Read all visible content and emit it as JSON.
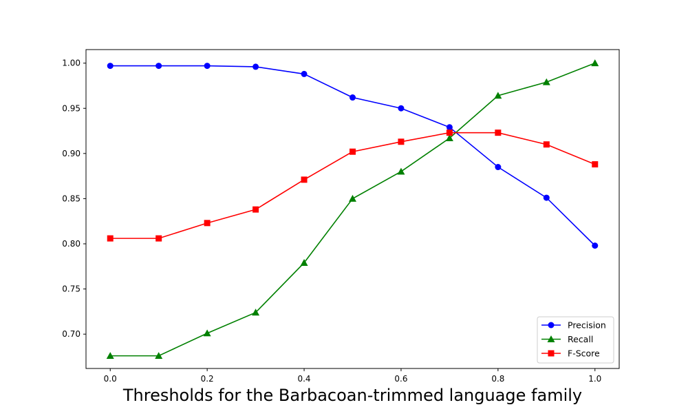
{
  "chart_data": {
    "type": "line",
    "title": "",
    "xlabel": "Thresholds for the Barbacoan-trimmed language family",
    "ylabel": "",
    "xlim": [
      -0.05,
      1.05
    ],
    "ylim": [
      0.662,
      1.015
    ],
    "x": [
      0.0,
      0.1,
      0.2,
      0.3,
      0.4,
      0.5,
      0.6,
      0.7,
      0.8,
      0.9,
      1.0
    ],
    "xticks": [
      0.0,
      0.2,
      0.4,
      0.6,
      0.8,
      1.0
    ],
    "xtick_labels": [
      "0.0",
      "0.2",
      "0.4",
      "0.6",
      "0.8",
      "1.0"
    ],
    "yticks": [
      0.7,
      0.75,
      0.8,
      0.85,
      0.9,
      0.95,
      1.0
    ],
    "ytick_labels": [
      "0.70",
      "0.75",
      "0.80",
      "0.85",
      "0.90",
      "0.95",
      "1.00"
    ],
    "grid": false,
    "legend_position": "lower-right",
    "series": [
      {
        "name": "Precision",
        "color": "#0000ff",
        "marker": "circle",
        "values": [
          0.997,
          0.997,
          0.997,
          0.996,
          0.988,
          0.962,
          0.95,
          0.929,
          0.885,
          0.851,
          0.798
        ]
      },
      {
        "name": "Recall",
        "color": "#008000",
        "marker": "triangle",
        "values": [
          0.676,
          0.676,
          0.701,
          0.724,
          0.779,
          0.85,
          0.88,
          0.917,
          0.964,
          0.979,
          1.0
        ]
      },
      {
        "name": "F-Score",
        "color": "#ff0000",
        "marker": "square",
        "values": [
          0.806,
          0.806,
          0.823,
          0.838,
          0.871,
          0.902,
          0.913,
          0.923,
          0.923,
          0.91,
          0.888
        ]
      }
    ]
  }
}
